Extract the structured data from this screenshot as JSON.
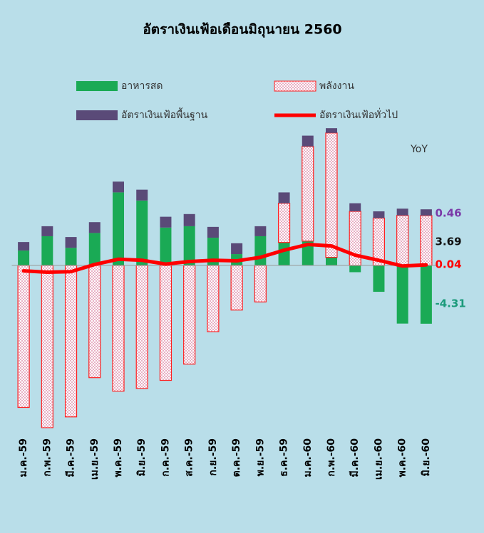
{
  "chart_data": {
    "type": "bar",
    "title": "อัตราเงินเฟ้อเดือนมิถุนายน 2560",
    "annotation": "YoY",
    "categories": [
      "ม.ค.-59",
      "ก.พ.-59",
      "มี.ค.-59",
      "เม.ย.-59",
      "พ.ค.-59",
      "มิ.ย.-59",
      "ก.ค.-59",
      "ส.ค.-59",
      "ก.ย.-59",
      "ต.ค.-59",
      "พ.ย.-59",
      "ธ.ค.-59",
      "ม.ค.-60",
      "ก.พ.-60",
      "มี.ค.-60",
      "เม.ย.-60",
      "พ.ค.-60",
      "มิ.ย.-60"
    ],
    "series": [
      {
        "name": "อาหารสด",
        "color": "#1aaa55",
        "values": [
          1.1,
          2.16,
          1.3,
          2.4,
          5.4,
          4.8,
          2.8,
          2.9,
          2.05,
          0.84,
          2.16,
          1.7,
          1.8,
          0.6,
          -0.5,
          -1.95,
          -4.3,
          -4.31
        ]
      },
      {
        "name": "พลังงาน",
        "color": "#ff2020",
        "values": [
          -10.5,
          -12.0,
          -11.2,
          -8.3,
          -9.3,
          -9.1,
          -8.5,
          -7.3,
          -4.9,
          -3.3,
          -2.7,
          2.9,
          7.0,
          9.2,
          4.0,
          3.5,
          3.7,
          3.69
        ]
      },
      {
        "name": "อัตราเงินเฟ้อพื้นฐาน",
        "color": "#5a4a78",
        "values": [
          0.63,
          0.74,
          0.8,
          0.8,
          0.8,
          0.8,
          0.8,
          0.9,
          0.8,
          0.8,
          0.74,
          0.8,
          0.8,
          0.35,
          0.6,
          0.5,
          0.5,
          0.46
        ]
      },
      {
        "name": "อัตราเงินเฟ้อทั่วไป",
        "color": "#ff0000",
        "type": "line",
        "values": [
          -0.4,
          -0.5,
          -0.46,
          0.07,
          0.46,
          0.38,
          0.1,
          0.29,
          0.38,
          0.34,
          0.6,
          1.13,
          1.55,
          1.44,
          0.76,
          0.38,
          -0.04,
          0.04
        ]
      }
    ],
    "label_colors": [
      "#1a9a7a",
      "#111111",
      "#7a3aa8",
      "#ff0000"
    ],
    "ylim": [
      -12.5,
      10.5
    ]
  }
}
